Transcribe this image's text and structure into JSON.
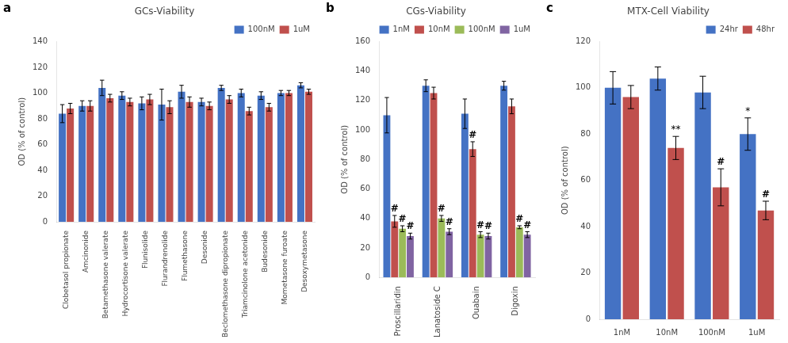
{
  "chart_data": [
    {
      "type": "bar",
      "panel_label": "a",
      "title": "GCs-Viability",
      "ylabel": "OD (% of control)",
      "categories": [
        "Clobetasol propionate",
        "Amcinonide",
        "Betamethasone valerate",
        "Hydrocortisone valerate",
        "Flunisolide",
        "Flurandrenolide",
        "Flumethasone",
        "Desonide",
        "Beclomethasone dipropionate",
        "Triamcinolone acetonide",
        "Budesonide",
        "Mometasone furoate",
        "Desoxymetasone"
      ],
      "series": [
        {
          "name": "100nM",
          "color": "#4472C4",
          "values": [
            84,
            90,
            104,
            98,
            92,
            91,
            101,
            93,
            104,
            100,
            98,
            100,
            106
          ],
          "errors": [
            7,
            4,
            6,
            3,
            5,
            12,
            5,
            3,
            2,
            3,
            3,
            2,
            2
          ]
        },
        {
          "name": "1uM",
          "color": "#C0504D",
          "values": [
            88,
            90,
            96,
            93,
            95,
            89,
            93,
            90,
            95,
            86,
            89,
            100,
            101
          ],
          "errors": [
            4,
            4,
            3,
            3,
            4,
            5,
            4,
            3,
            3,
            3,
            3,
            2,
            2
          ]
        }
      ],
      "ylim": [
        0,
        140
      ],
      "yticks": [
        0,
        20,
        40,
        60,
        80,
        100,
        120,
        140
      ],
      "grid": false,
      "legend": "upper right"
    },
    {
      "type": "bar",
      "panel_label": "b",
      "title": "CGs-Viability",
      "ylabel": "OD (% of control)",
      "categories": [
        "Proscillaridin",
        "Lanatoside C",
        "Ouabain",
        "Digoxin"
      ],
      "series": [
        {
          "name": "1nM",
          "color": "#4472C4",
          "values": [
            110,
            130,
            111,
            130
          ],
          "errors": [
            12,
            4,
            10,
            3
          ]
        },
        {
          "name": "10nM",
          "color": "#C0504D",
          "values": [
            38,
            125,
            87,
            116
          ],
          "errors": [
            4,
            4,
            5,
            5
          ]
        },
        {
          "name": "100nM",
          "color": "#9BBB59",
          "values": [
            33,
            40,
            29,
            34
          ],
          "errors": [
            2,
            2,
            2,
            1
          ]
        },
        {
          "name": "1uM",
          "color": "#8064A2",
          "values": [
            28,
            31,
            28,
            29
          ],
          "errors": [
            2,
            2,
            2,
            2
          ]
        }
      ],
      "annotations": [
        {
          "series": "10nM",
          "category": "Proscillaridin",
          "text": "#"
        },
        {
          "series": "10nM",
          "category": "Ouabain",
          "text": "#"
        },
        {
          "series": "100nM",
          "category": "Proscillaridin",
          "text": "#"
        },
        {
          "series": "100nM",
          "category": "Lanatoside C",
          "text": "#"
        },
        {
          "series": "100nM",
          "category": "Ouabain",
          "text": "#"
        },
        {
          "series": "100nM",
          "category": "Digoxin",
          "text": "#"
        },
        {
          "series": "1uM",
          "category": "Proscillaridin",
          "text": "#"
        },
        {
          "series": "1uM",
          "category": "Lanatoside C",
          "text": "#"
        },
        {
          "series": "1uM",
          "category": "Ouabain",
          "text": "#"
        },
        {
          "series": "1uM",
          "category": "Digoxin",
          "text": "#"
        }
      ],
      "ylim": [
        0,
        160
      ],
      "yticks": [
        0,
        20,
        40,
        60,
        80,
        100,
        120,
        140,
        160
      ],
      "grid": false,
      "legend": "upper right"
    },
    {
      "type": "bar",
      "panel_label": "c",
      "title": "MTX-Cell Viability",
      "ylabel": "OD (% of control)",
      "categories": [
        "1nM",
        "10nM",
        "100nM",
        "1uM"
      ],
      "series": [
        {
          "name": "24hr",
          "color": "#4472C4",
          "values": [
            100,
            104,
            98,
            80
          ],
          "errors": [
            7,
            5,
            7,
            7
          ]
        },
        {
          "name": "48hr",
          "color": "#C0504D",
          "values": [
            96,
            74,
            57,
            47
          ],
          "errors": [
            5,
            5,
            8,
            4
          ]
        }
      ],
      "annotations": [
        {
          "series": "24hr",
          "category": "1uM",
          "text": "*"
        },
        {
          "series": "48hr",
          "category": "10nM",
          "text": "**"
        },
        {
          "series": "48hr",
          "category": "100nM",
          "text": "#"
        },
        {
          "series": "48hr",
          "category": "1uM",
          "text": "#"
        }
      ],
      "ylim": [
        0,
        120
      ],
      "yticks": [
        0,
        20,
        40,
        60,
        80,
        100,
        120
      ],
      "grid": false,
      "legend": "upper right"
    }
  ]
}
